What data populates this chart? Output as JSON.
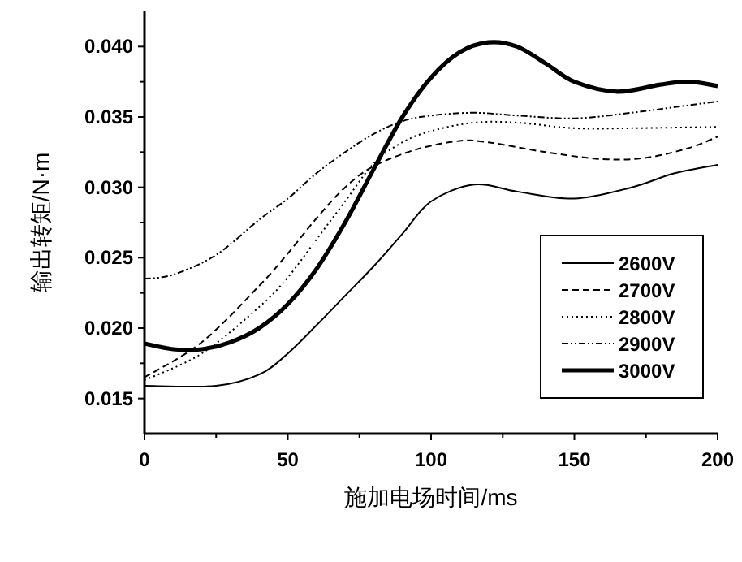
{
  "chart_data": {
    "type": "line",
    "xlabel": "施加电场时间/ms",
    "ylabel": "输出转矩/N·m",
    "xlim": [
      0,
      200
    ],
    "xticks": [
      0,
      50,
      100,
      150,
      200
    ],
    "ylim": [
      0.0125,
      0.0425
    ],
    "yticks": [
      {
        "value": 0.015,
        "label": "0.015"
      },
      {
        "value": 0.02,
        "label": "0.020"
      },
      {
        "value": 0.025,
        "label": "0.025"
      },
      {
        "value": 0.03,
        "label": "0.030"
      },
      {
        "value": 0.035,
        "label": "0.035"
      },
      {
        "value": 0.04,
        "label": "0.040"
      }
    ],
    "grid": false,
    "legend": "bottom right",
    "series": [
      {
        "name": "2600V",
        "color": "#000000",
        "line_style": "solid",
        "x": [
          0,
          25,
          40,
          50,
          60,
          70,
          80,
          90,
          100,
          115,
          130,
          150,
          170,
          185,
          200
        ],
        "values": [
          0.0159,
          0.0159,
          0.0167,
          0.0182,
          0.0202,
          0.0223,
          0.0244,
          0.0267,
          0.029,
          0.0302,
          0.0297,
          0.0292,
          0.03,
          0.031,
          0.0316
        ]
      },
      {
        "name": "2700V",
        "color": "#000000",
        "line_style": "dashed",
        "x": [
          0,
          20,
          40,
          50,
          60,
          70,
          80,
          95,
          110,
          120,
          140,
          160,
          175,
          190,
          200
        ],
        "values": [
          0.0165,
          0.019,
          0.023,
          0.0253,
          0.0278,
          0.03,
          0.0315,
          0.0327,
          0.0333,
          0.0332,
          0.0325,
          0.032,
          0.0321,
          0.0328,
          0.0336
        ]
      },
      {
        "name": "2800V",
        "color": "#000000",
        "line_style": "dotted",
        "x": [
          0,
          20,
          40,
          50,
          60,
          70,
          80,
          90,
          100,
          115,
          130,
          150,
          170,
          200
        ],
        "values": [
          0.0163,
          0.0182,
          0.0215,
          0.0236,
          0.0263,
          0.029,
          0.0317,
          0.0332,
          0.034,
          0.0346,
          0.0346,
          0.0342,
          0.0342,
          0.0343
        ]
      },
      {
        "name": "2900V",
        "color": "#000000",
        "line_style": "dashdot",
        "x": [
          0,
          10,
          25,
          40,
          50,
          60,
          70,
          80,
          90,
          100,
          115,
          130,
          150,
          170,
          185,
          200
        ],
        "values": [
          0.0235,
          0.0238,
          0.0252,
          0.0277,
          0.0292,
          0.031,
          0.0325,
          0.0338,
          0.0347,
          0.0351,
          0.0353,
          0.0351,
          0.0349,
          0.0353,
          0.0357,
          0.0361
        ]
      },
      {
        "name": "3000V",
        "color": "#000000",
        "line_style": "solid",
        "x": [
          0,
          10,
          20,
          30,
          40,
          50,
          60,
          70,
          80,
          90,
          100,
          110,
          120,
          130,
          140,
          150,
          165,
          180,
          190,
          200
        ],
        "values": [
          0.0189,
          0.0185,
          0.0185,
          0.019,
          0.02,
          0.0217,
          0.0242,
          0.0275,
          0.0313,
          0.035,
          0.0378,
          0.0396,
          0.0403,
          0.04,
          0.0388,
          0.0375,
          0.0368,
          0.0373,
          0.0375,
          0.0372
        ]
      }
    ]
  }
}
